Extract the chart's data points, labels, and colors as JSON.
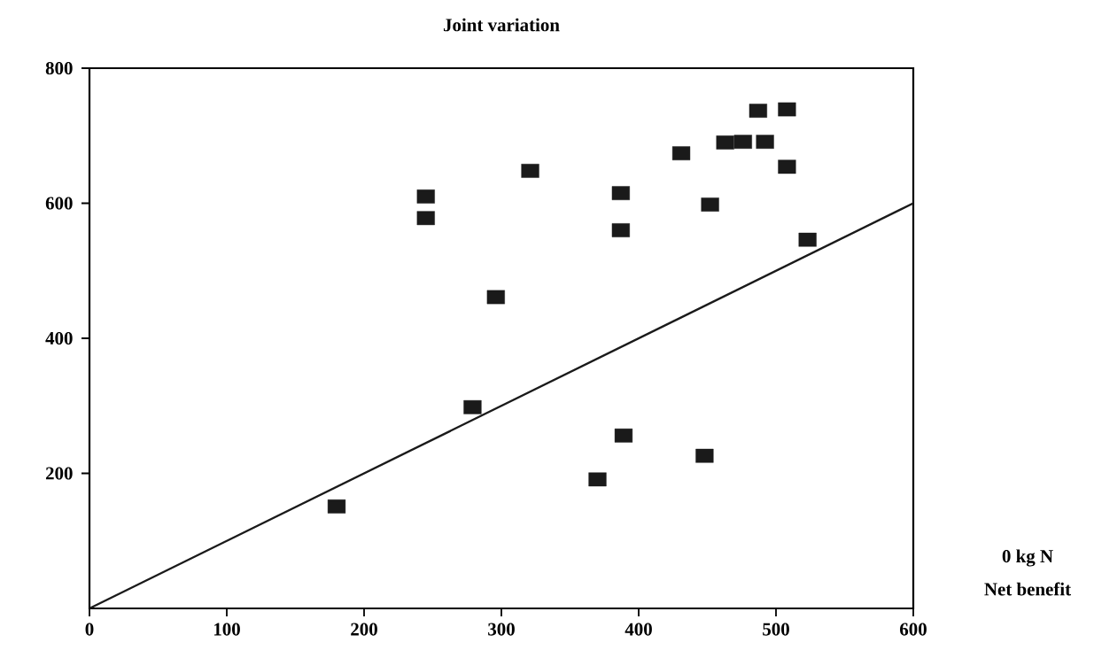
{
  "chart_data": {
    "type": "scatter",
    "title": "Joint variation",
    "xlabel": "Net benefit",
    "annotations": [
      "0 kg N"
    ],
    "xlim": [
      0,
      600
    ],
    "ylim": [
      0,
      800
    ],
    "xticks": [
      0,
      100,
      200,
      300,
      400,
      500,
      600
    ],
    "yticks": [
      200,
      400,
      600,
      800
    ],
    "grid": false,
    "series": [
      {
        "marker": "square",
        "color": "#1a1a1a",
        "x": [
          180,
          245,
          245,
          296,
          321,
          279,
          389,
          370,
          448,
          487,
          508,
          463,
          476,
          492,
          431,
          508,
          387,
          452,
          387,
          523
        ],
        "values": [
          151,
          610,
          578,
          461,
          648,
          298,
          256,
          191,
          226,
          737,
          739,
          690,
          691,
          691,
          674,
          654,
          615,
          598,
          560,
          546
        ]
      },
      {
        "type": "line",
        "marker": "none",
        "color": "#1a1a1a",
        "x": [
          0,
          600
        ],
        "values": [
          0,
          600
        ]
      }
    ]
  }
}
